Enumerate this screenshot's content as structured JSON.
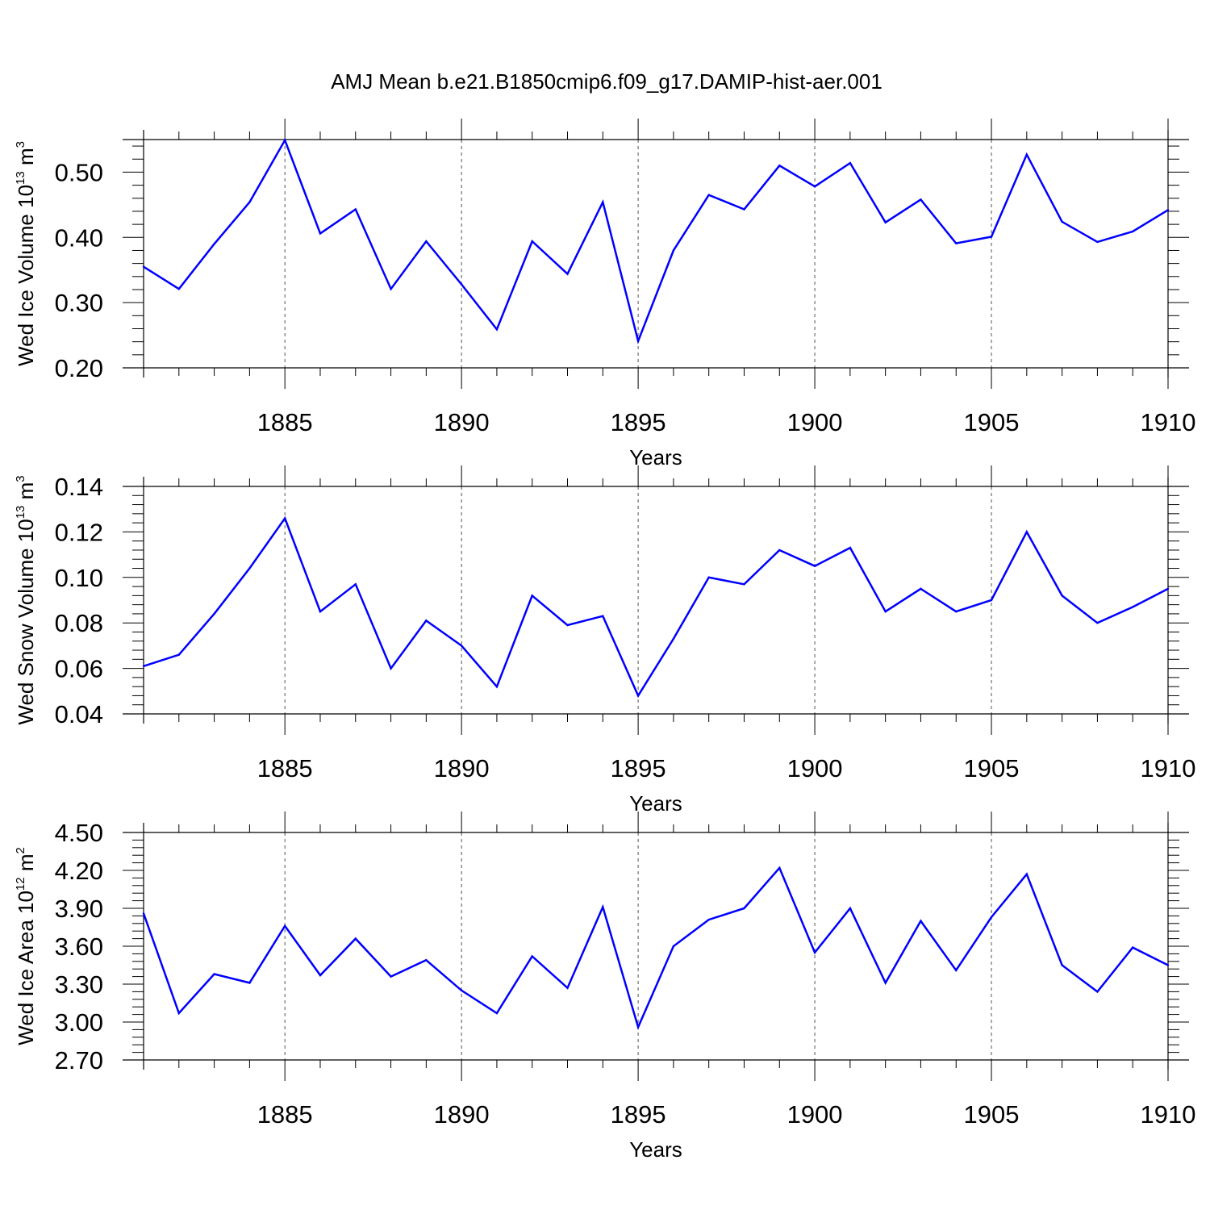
{
  "chart_data": {
    "title": "AMJ Mean b.e21.B1850cmip6.f09_g17.DAMIP-hist-aer.001",
    "line_color": "#0000ff",
    "panels": [
      {
        "type": "line",
        "ylabel": {
          "main": "Wed Ice Volume 10",
          "exp": "13",
          "unit": " m",
          "unit_exp": "3"
        },
        "xlabel": "Years",
        "xlim": [
          1881,
          1910
        ],
        "xticks": [
          1885,
          1890,
          1895,
          1900,
          1905,
          1910
        ],
        "ylim": [
          0.2,
          0.55
        ],
        "yticks": [
          0.2,
          0.3,
          0.4,
          0.5
        ],
        "ytick_labels": [
          "0.20",
          "0.30",
          "0.40",
          "0.50"
        ],
        "grid": "vertical dashed at major ticks",
        "x": [
          1881,
          1882,
          1883,
          1884,
          1885,
          1886,
          1887,
          1888,
          1889,
          1890,
          1891,
          1892,
          1893,
          1894,
          1895,
          1896,
          1897,
          1898,
          1899,
          1900,
          1901,
          1902,
          1903,
          1904,
          1905,
          1906,
          1907,
          1908,
          1909,
          1910
        ],
        "values": [
          0.355,
          0.321,
          0.39,
          0.454,
          0.549,
          0.406,
          0.443,
          0.321,
          0.394,
          0.328,
          0.259,
          0.394,
          0.344,
          0.454,
          0.241,
          0.38,
          0.465,
          0.443,
          0.51,
          0.478,
          0.514,
          0.423,
          0.458,
          0.391,
          0.401,
          0.527,
          0.424,
          0.393,
          0.409,
          0.442
        ]
      },
      {
        "type": "line",
        "ylabel": {
          "main": "Wed Snow Volume 10",
          "exp": "13",
          "unit": " m",
          "unit_exp": "3"
        },
        "xlabel": "Years",
        "xlim": [
          1881,
          1910
        ],
        "xticks": [
          1885,
          1890,
          1895,
          1900,
          1905,
          1910
        ],
        "ylim": [
          0.04,
          0.14
        ],
        "yticks": [
          0.04,
          0.06,
          0.08,
          0.1,
          0.12,
          0.14
        ],
        "ytick_labels": [
          "0.04",
          "0.06",
          "0.08",
          "0.10",
          "0.12",
          "0.14"
        ],
        "grid": "vertical dashed at major ticks",
        "x": [
          1881,
          1882,
          1883,
          1884,
          1885,
          1886,
          1887,
          1888,
          1889,
          1890,
          1891,
          1892,
          1893,
          1894,
          1895,
          1896,
          1897,
          1898,
          1899,
          1900,
          1901,
          1902,
          1903,
          1904,
          1905,
          1906,
          1907,
          1908,
          1909,
          1910
        ],
        "values": [
          0.061,
          0.066,
          0.084,
          0.104,
          0.126,
          0.085,
          0.097,
          0.06,
          0.081,
          0.07,
          0.052,
          0.092,
          0.079,
          0.083,
          0.048,
          0.073,
          0.1,
          0.097,
          0.112,
          0.105,
          0.113,
          0.085,
          0.095,
          0.085,
          0.09,
          0.12,
          0.092,
          0.08,
          0.087,
          0.095
        ]
      },
      {
        "type": "line",
        "ylabel": {
          "main": "Wed Ice Area 10",
          "exp": "12",
          "unit": " m",
          "unit_exp": "2"
        },
        "xlabel": "Years",
        "xlim": [
          1881,
          1910
        ],
        "xticks": [
          1885,
          1890,
          1895,
          1900,
          1905,
          1910
        ],
        "ylim": [
          2.7,
          4.5
        ],
        "yticks": [
          2.7,
          3.0,
          3.3,
          3.6,
          3.9,
          4.2,
          4.5
        ],
        "ytick_labels": [
          "2.70",
          "3.00",
          "3.30",
          "3.60",
          "3.90",
          "4.20",
          "4.50"
        ],
        "grid": "vertical dashed at major ticks",
        "x": [
          1881,
          1882,
          1883,
          1884,
          1885,
          1886,
          1887,
          1888,
          1889,
          1890,
          1891,
          1892,
          1893,
          1894,
          1895,
          1896,
          1897,
          1898,
          1899,
          1900,
          1901,
          1902,
          1903,
          1904,
          1905,
          1906,
          1907,
          1908,
          1909,
          1910
        ],
        "values": [
          3.86,
          3.07,
          3.38,
          3.31,
          3.76,
          3.37,
          3.66,
          3.36,
          3.49,
          3.25,
          3.07,
          3.52,
          3.27,
          3.91,
          2.96,
          3.6,
          3.81,
          3.9,
          4.22,
          3.55,
          3.9,
          3.31,
          3.8,
          3.41,
          3.83,
          4.17,
          3.45,
          3.24,
          3.59,
          3.45
        ]
      }
    ]
  }
}
